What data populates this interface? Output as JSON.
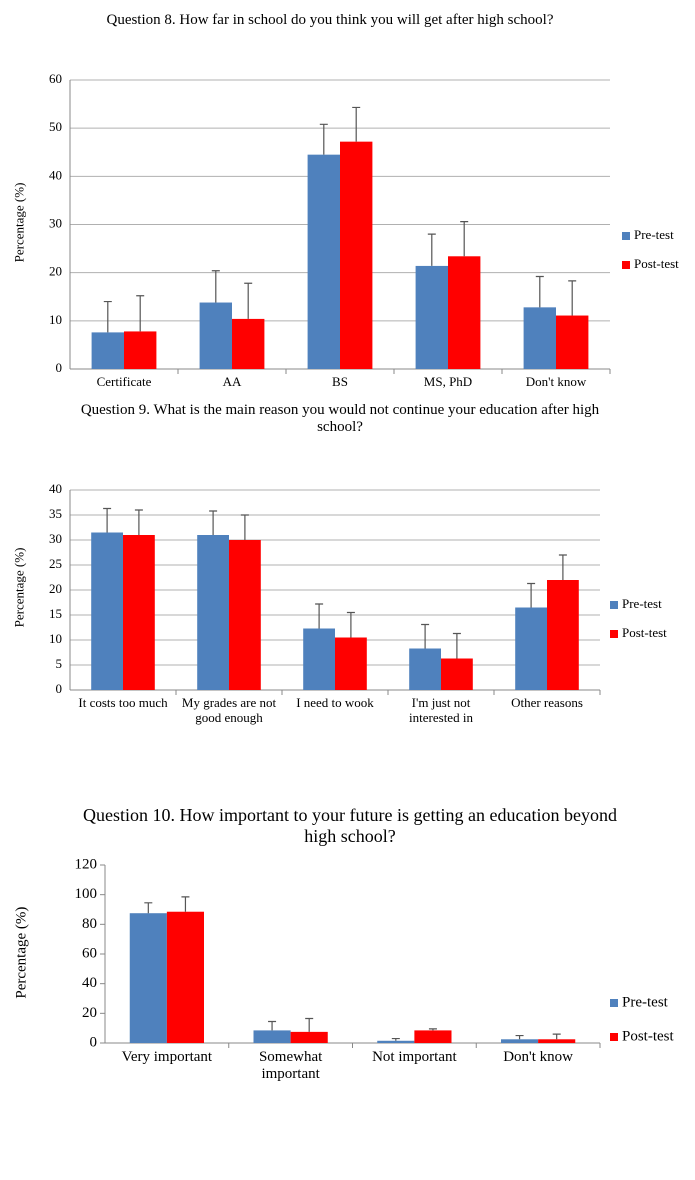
{
  "chart_data": [
    {
      "type": "bar",
      "title": "Question 8. How far in school do you think you will get after high school?",
      "ylabel": "Percentage (%)",
      "categories": [
        "Certificate",
        "AA",
        "BS",
        "MS, PhD",
        "Don't know"
      ],
      "series": [
        {
          "name": "Pre-test",
          "color": "#4f81bd",
          "values": [
            7.6,
            13.8,
            44.5,
            21.4,
            12.8
          ],
          "errors": [
            6.4,
            6.6,
            6.3,
            6.6,
            6.4
          ]
        },
        {
          "name": "Post-test",
          "color": "#ff0000",
          "values": [
            7.8,
            10.4,
            47.2,
            23.4,
            11.1
          ],
          "errors": [
            7.4,
            7.4,
            7.1,
            7.2,
            7.2
          ]
        }
      ],
      "ylim": [
        0,
        60
      ],
      "yticks": [
        0,
        10,
        20,
        30,
        40,
        50,
        60
      ],
      "grid": true,
      "legend": "right"
    },
    {
      "type": "bar",
      "title": "Question 9. What is the main reason you would not continue your education after high school?",
      "ylabel": "Percentage (%)",
      "categories": [
        "It costs too much",
        "My grades are not good enough",
        "I need to wook",
        "I'm just not interested in",
        "Other reasons"
      ],
      "series": [
        {
          "name": "Pre-test",
          "color": "#4f81bd",
          "values": [
            31.5,
            31,
            12.3,
            8.3,
            16.5
          ],
          "errors": [
            4.8,
            4.8,
            4.9,
            4.8,
            4.8
          ]
        },
        {
          "name": "Post-test",
          "color": "#ff0000",
          "values": [
            31,
            30,
            10.5,
            6.3,
            22
          ],
          "errors": [
            5,
            5,
            5,
            5,
            5
          ]
        }
      ],
      "ylim": [
        0,
        40
      ],
      "yticks": [
        0,
        5,
        10,
        15,
        20,
        25,
        30,
        35,
        40
      ],
      "grid": true,
      "legend": "right"
    },
    {
      "type": "bar",
      "title": "Question 10. How important to your future is getting an education beyond high school?",
      "ylabel": "Percentage (%)",
      "categories": [
        "Very important",
        "Somewhat important",
        "Not important",
        "Don't know"
      ],
      "series": [
        {
          "name": "Pre-test",
          "color": "#4f81bd",
          "values": [
            87.5,
            8.5,
            1.5,
            2.5
          ],
          "errors": [
            7,
            6,
            1.5,
            2.5
          ]
        },
        {
          "name": "Post-test",
          "color": "#ff0000",
          "values": [
            88.5,
            7.5,
            8.5,
            2.5
          ],
          "errors": [
            10,
            9,
            1,
            3.5
          ]
        }
      ],
      "ylim": [
        0,
        120
      ],
      "yticks": [
        0,
        20,
        40,
        60,
        80,
        100,
        120
      ],
      "grid": false,
      "legend": "right"
    }
  ]
}
